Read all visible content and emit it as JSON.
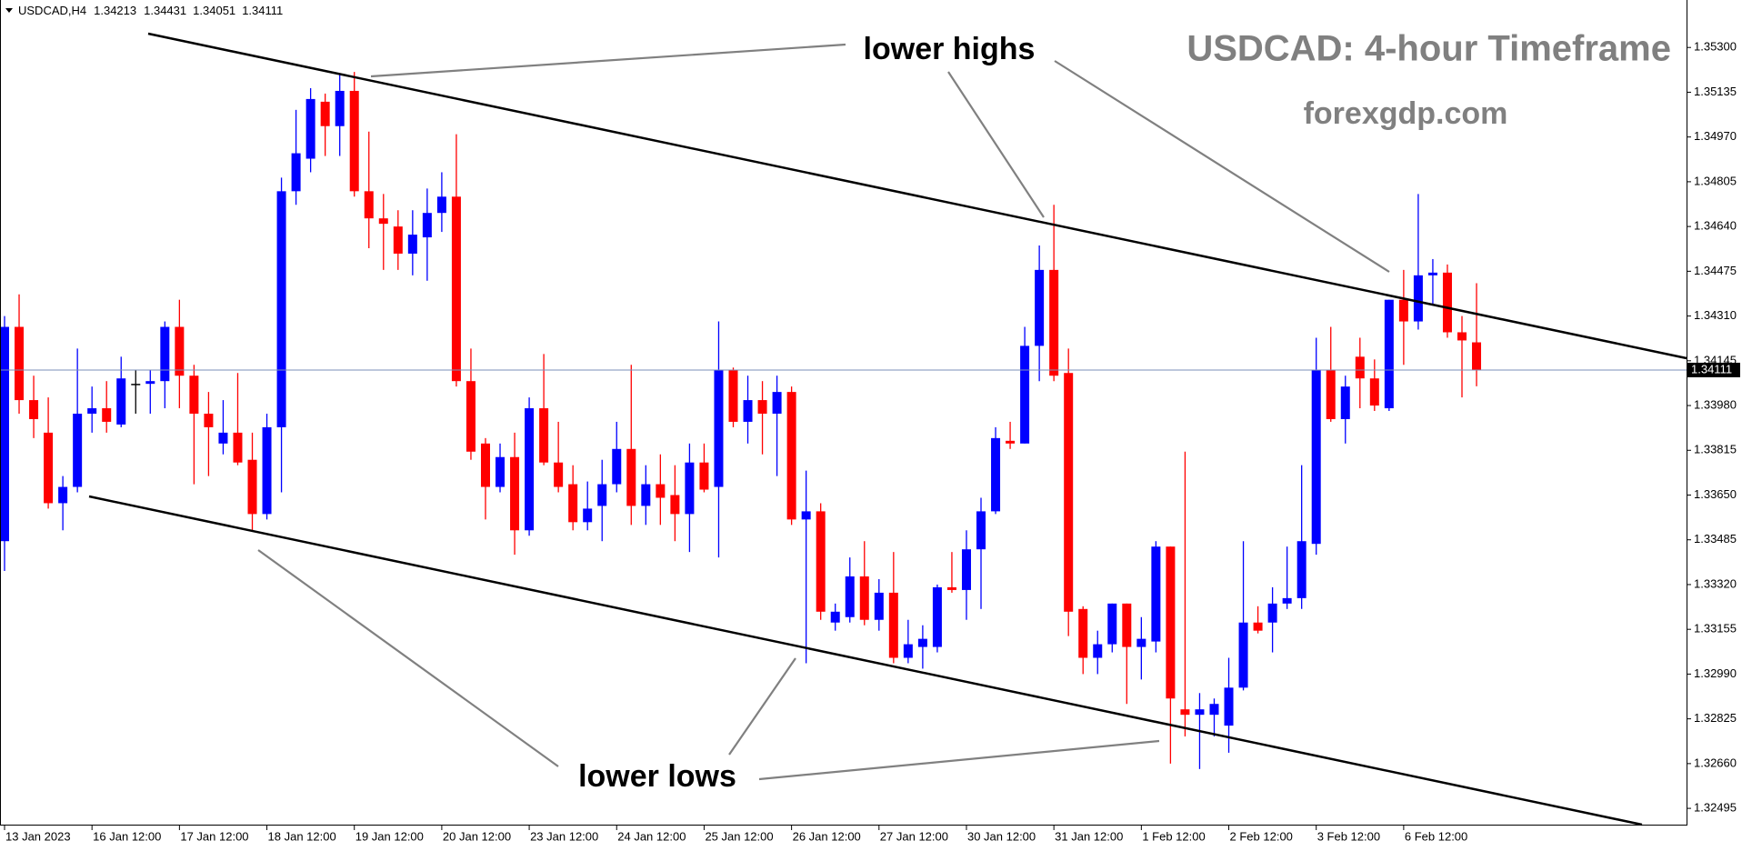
{
  "chart_data": {
    "type": "candlestick",
    "symbol": "USDCAD,H4",
    "title": "USDCAD: 4-hour Timeframe",
    "subtitle": "forexgdp.com",
    "annotations": [
      "lower highs",
      "lower lows"
    ],
    "up_color": "#0000ff",
    "down_color": "#ff0000",
    "flat_color": "#000000",
    "categories": [
      "13 Jan 2023",
      null,
      null,
      null,
      null,
      null,
      "16 Jan 12:00",
      null,
      null,
      null,
      null,
      null,
      "17 Jan 12:00",
      null,
      null,
      null,
      null,
      null,
      "18 Jan 12:00",
      null,
      null,
      null,
      null,
      null,
      "19 Jan 12:00",
      null,
      null,
      null,
      null,
      null,
      "20 Jan 12:00",
      null,
      null,
      null,
      null,
      null,
      "23 Jan 12:00",
      null,
      null,
      null,
      null,
      null,
      "24 Jan 12:00",
      null,
      null,
      null,
      null,
      null,
      "25 Jan 12:00",
      null,
      null,
      null,
      null,
      null,
      "26 Jan 12:00",
      null,
      null,
      null,
      null,
      null,
      "27 Jan 12:00",
      null,
      null,
      null,
      null,
      null,
      "30 Jan 12:00",
      null,
      null,
      null,
      null,
      null,
      "31 Jan 12:00",
      null,
      null,
      null,
      null,
      null,
      "1 Feb 12:00",
      null,
      null,
      null,
      null,
      null,
      "2 Feb 12:00",
      null,
      null,
      null,
      null,
      null,
      "3 Feb 12:00",
      null,
      null,
      null,
      null,
      null,
      "6 Feb 12:00",
      null,
      null,
      null,
      null,
      null
    ],
    "open": [
      1.3348,
      1.3427,
      1.34,
      1.3388,
      1.3362,
      1.3368,
      1.3395,
      1.3397,
      1.3391,
      1.3406,
      1.3406,
      1.3407,
      1.3427,
      1.3409,
      1.3395,
      1.3384,
      1.3388,
      1.3378,
      1.3358,
      1.339,
      1.3477,
      1.3489,
      1.351,
      1.3501,
      1.3514,
      1.3477,
      1.3467,
      1.3464,
      1.3454,
      1.346,
      1.3469,
      1.3475,
      1.3407,
      1.3384,
      1.3368,
      1.3379,
      1.3352,
      1.3397,
      1.3377,
      1.3369,
      1.3355,
      1.3361,
      1.3369,
      1.3382,
      1.3361,
      1.3369,
      1.3365,
      1.3358,
      1.3377,
      1.3368,
      1.3411,
      1.3392,
      1.34,
      1.3395,
      1.3403,
      1.3356,
      1.3359,
      1.3318,
      1.332,
      1.3335,
      1.3319,
      1.3329,
      1.3305,
      1.3309,
      1.3309,
      1.3331,
      1.333,
      1.3345,
      1.3359,
      1.3385,
      1.3384,
      1.342,
      1.3448,
      1.341,
      1.3323,
      1.3305,
      1.331,
      1.3325,
      1.3309,
      1.3311,
      1.3346,
      1.3286,
      1.3284,
      1.3284,
      1.328,
      1.3294,
      1.3318,
      1.3318,
      1.3325,
      1.3327,
      1.3347,
      1.3411,
      1.3393,
      1.3416,
      1.3408,
      1.3397,
      1.3437,
      1.3429,
      1.3446,
      1.3447,
      1.3425,
      1.34213
    ],
    "high": [
      1.3431,
      1.3439,
      1.3409,
      1.3401,
      1.3372,
      1.3419,
      1.3405,
      1.3407,
      1.3416,
      1.3411,
      1.3411,
      1.3429,
      1.3437,
      1.3413,
      1.3403,
      1.34,
      1.341,
      1.3388,
      1.3395,
      1.3482,
      1.3507,
      1.3515,
      1.3513,
      1.352,
      1.3521,
      1.3499,
      1.3476,
      1.347,
      1.347,
      1.3478,
      1.3484,
      1.3498,
      1.3419,
      1.3386,
      1.3384,
      1.3388,
      1.3401,
      1.3417,
      1.3392,
      1.3376,
      1.337,
      1.3378,
      1.3392,
      1.3413,
      1.3376,
      1.338,
      1.3376,
      1.3384,
      1.3384,
      1.3429,
      1.3412,
      1.3409,
      1.3407,
      1.3409,
      1.3405,
      1.3374,
      1.3362,
      1.3325,
      1.3342,
      1.3348,
      1.3334,
      1.3344,
      1.3319,
      1.3317,
      1.3332,
      1.3344,
      1.3352,
      1.3364,
      1.339,
      1.3392,
      1.3427,
      1.3457,
      1.3472,
      1.3419,
      1.3324,
      1.3315,
      1.3325,
      1.3325,
      1.332,
      1.3348,
      1.3346,
      1.3381,
      1.3292,
      1.329,
      1.3305,
      1.3348,
      1.3324,
      1.3331,
      1.3346,
      1.3376,
      1.3423,
      1.3427,
      1.3409,
      1.3423,
      1.3415,
      1.3437,
      1.3448,
      1.3476,
      1.3452,
      1.345,
      1.3431,
      1.34431
    ],
    "low": [
      1.3337,
      1.3395,
      1.3386,
      1.336,
      1.3352,
      1.3366,
      1.3388,
      1.3388,
      1.339,
      1.3395,
      1.3395,
      1.3397,
      1.3397,
      1.3369,
      1.3372,
      1.338,
      1.3376,
      1.3352,
      1.3356,
      1.3366,
      1.3472,
      1.3484,
      1.349,
      1.349,
      1.3475,
      1.3456,
      1.3448,
      1.3448,
      1.3446,
      1.3444,
      1.3462,
      1.3405,
      1.3378,
      1.3356,
      1.3366,
      1.3343,
      1.335,
      1.3376,
      1.3366,
      1.3352,
      1.3352,
      1.3348,
      1.3366,
      1.3354,
      1.3354,
      1.3354,
      1.3348,
      1.3344,
      1.3366,
      1.3342,
      1.339,
      1.3384,
      1.338,
      1.3372,
      1.3354,
      1.3303,
      1.3319,
      1.3315,
      1.3318,
      1.3317,
      1.3315,
      1.3303,
      1.3303,
      1.3301,
      1.3307,
      1.3329,
      1.3319,
      1.3323,
      1.3358,
      1.3382,
      1.3384,
      1.3407,
      1.3407,
      1.3313,
      1.3299,
      1.3299,
      1.3307,
      1.3288,
      1.3297,
      1.3307,
      1.3266,
      1.3276,
      1.3264,
      1.3276,
      1.327,
      1.3293,
      1.3314,
      1.3307,
      1.3323,
      1.3323,
      1.3343,
      1.3392,
      1.3384,
      1.3397,
      1.3396,
      1.3396,
      1.3413,
      1.3426,
      1.3435,
      1.3423,
      1.3401,
      1.34051
    ],
    "close": [
      1.3427,
      1.34,
      1.3393,
      1.3362,
      1.3368,
      1.3395,
      1.3397,
      1.3392,
      1.3408,
      1.3406,
      1.3407,
      1.3427,
      1.3409,
      1.3395,
      1.339,
      1.3388,
      1.3377,
      1.3358,
      1.339,
      1.3477,
      1.3491,
      1.3511,
      1.3501,
      1.3514,
      1.3477,
      1.3467,
      1.3465,
      1.3454,
      1.3461,
      1.3469,
      1.3475,
      1.3407,
      1.3381,
      1.3368,
      1.3379,
      1.3352,
      1.3397,
      1.3377,
      1.3368,
      1.3355,
      1.336,
      1.3369,
      1.3382,
      1.3361,
      1.3369,
      1.3364,
      1.3358,
      1.3377,
      1.3367,
      1.3411,
      1.3392,
      1.34,
      1.3395,
      1.3403,
      1.3356,
      1.3359,
      1.3322,
      1.3322,
      1.3335,
      1.3319,
      1.3329,
      1.3305,
      1.331,
      1.3312,
      1.3331,
      1.333,
      1.3345,
      1.3359,
      1.3386,
      1.3384,
      1.342,
      1.3448,
      1.3409,
      1.3322,
      1.3305,
      1.331,
      1.3325,
      1.3309,
      1.3312,
      1.3346,
      1.329,
      1.3284,
      1.3286,
      1.3288,
      1.3294,
      1.3318,
      1.3315,
      1.3325,
      1.3327,
      1.3348,
      1.3411,
      1.3393,
      1.3405,
      1.3408,
      1.3398,
      1.3437,
      1.3429,
      1.3446,
      1.3447,
      1.3425,
      1.3422,
      1.34111
    ],
    "ylim": [
      1.32435,
      1.35475
    ],
    "yticks": [
      {
        "value": 1.353,
        "label": "1.35300"
      },
      {
        "value": 1.35135,
        "label": "1.35135"
      },
      {
        "value": 1.3497,
        "label": "1.34970"
      },
      {
        "value": 1.34805,
        "label": "1.34805"
      },
      {
        "value": 1.3464,
        "label": "1.34640"
      },
      {
        "value": 1.34475,
        "label": "1.34475"
      },
      {
        "value": 1.3431,
        "label": "1.34310"
      },
      {
        "value": 1.34145,
        "label": "1.34145"
      },
      {
        "value": 1.3398,
        "label": "1.33980"
      },
      {
        "value": 1.33815,
        "label": "1.33815"
      },
      {
        "value": 1.3365,
        "label": "1.33650"
      },
      {
        "value": 1.33485,
        "label": "1.33485"
      },
      {
        "value": 1.3332,
        "label": "1.33320"
      },
      {
        "value": 1.33155,
        "label": "1.33155"
      },
      {
        "value": 1.3299,
        "label": "1.32990"
      },
      {
        "value": 1.32825,
        "label": "1.32825"
      },
      {
        "value": 1.3266,
        "label": "1.32660"
      },
      {
        "value": 1.32495,
        "label": "1.32495"
      }
    ]
  }
}
